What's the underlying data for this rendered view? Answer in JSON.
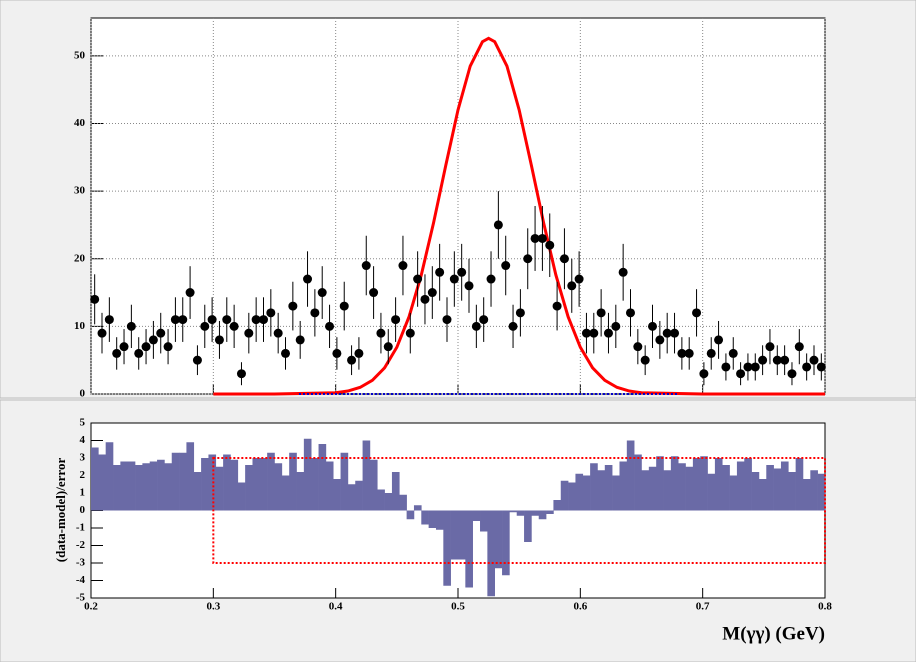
{
  "chart_data": [
    {
      "type": "errorbar",
      "x": [
        0.203,
        0.209,
        0.215,
        0.221,
        0.227,
        0.233,
        0.239,
        0.245,
        0.251,
        0.257,
        0.263,
        0.269,
        0.275,
        0.281,
        0.287,
        0.293,
        0.299,
        0.305,
        0.311,
        0.317,
        0.323,
        0.329,
        0.335,
        0.341,
        0.347,
        0.353,
        0.359,
        0.365,
        0.371,
        0.377,
        0.383,
        0.389,
        0.395,
        0.401,
        0.407,
        0.413,
        0.419,
        0.425,
        0.431,
        0.437,
        0.443,
        0.449,
        0.455,
        0.461,
        0.467,
        0.473,
        0.479,
        0.485,
        0.491,
        0.497,
        0.503,
        0.509,
        0.515,
        0.521,
        0.527,
        0.533,
        0.539,
        0.545,
        0.551,
        0.557,
        0.563,
        0.569,
        0.575,
        0.581,
        0.587,
        0.593,
        0.599,
        0.605,
        0.611,
        0.617,
        0.623,
        0.629,
        0.635,
        0.641,
        0.647,
        0.653,
        0.659,
        0.665,
        0.671,
        0.677,
        0.683,
        0.689,
        0.695,
        0.701,
        0.707,
        0.713,
        0.719,
        0.725,
        0.731,
        0.737,
        0.743,
        0.749,
        0.755,
        0.761,
        0.767,
        0.773,
        0.779,
        0.785,
        0.791,
        0.797
      ],
      "values": [
        14,
        9,
        11,
        6,
        7,
        10,
        6,
        7,
        8,
        9,
        7,
        11,
        11,
        15,
        5,
        10,
        11,
        8,
        11,
        10,
        3,
        9,
        11,
        11,
        12,
        9,
        6,
        13,
        8,
        17,
        12,
        15,
        10,
        6,
        13,
        5,
        6,
        19,
        15,
        9,
        7,
        11,
        19,
        9,
        17,
        14,
        15,
        18,
        11,
        17,
        18,
        16,
        10,
        11,
        17,
        25,
        19,
        10,
        12,
        20,
        23,
        23,
        22,
        13,
        20,
        16,
        17,
        9,
        9,
        12,
        9,
        10,
        18,
        12,
        7,
        5,
        10,
        8,
        9,
        9,
        6,
        6,
        12,
        3,
        6,
        8,
        4,
        6,
        3,
        4,
        4,
        5,
        7,
        5,
        5,
        3,
        7,
        4,
        5,
        4
      ],
      "errors": [
        3.7,
        3,
        3.3,
        2.4,
        2.6,
        3.2,
        2.4,
        2.6,
        2.8,
        3,
        2.6,
        3.3,
        3.3,
        3.9,
        2.2,
        3.2,
        3.3,
        2.8,
        3.3,
        3.2,
        1.7,
        3,
        3.3,
        3.3,
        3.5,
        3,
        2.4,
        3.6,
        2.8,
        4.1,
        3.5,
        3.9,
        3.2,
        2.4,
        3.6,
        2.2,
        2.4,
        4.4,
        3.9,
        3,
        2.6,
        3.3,
        4.4,
        3,
        4.1,
        3.7,
        3.9,
        4.2,
        3.3,
        4.1,
        4.2,
        4,
        3.2,
        3.3,
        4.1,
        5,
        4.4,
        3.2,
        3.5,
        4.5,
        4.8,
        4.8,
        4.7,
        3.6,
        4.5,
        4,
        4.1,
        3,
        3,
        3.5,
        3,
        3.2,
        4.2,
        3.5,
        2.6,
        2.2,
        3.2,
        2.8,
        3,
        3,
        2.4,
        2.4,
        3.5,
        1.7,
        2.4,
        2.8,
        2,
        2.4,
        1.7,
        2,
        2,
        2.2,
        2.6,
        2.2,
        2.2,
        1.7,
        2.6,
        2,
        2.2,
        2
      ],
      "color": "#000000",
      "curves": [
        {
          "color": "#ff0000",
          "x": [
            0.3,
            0.35,
            0.4,
            0.41,
            0.42,
            0.43,
            0.44,
            0.45,
            0.46,
            0.47,
            0.48,
            0.49,
            0.5,
            0.51,
            0.52,
            0.525,
            0.53,
            0.54,
            0.55,
            0.56,
            0.57,
            0.58,
            0.59,
            0.6,
            0.61,
            0.62,
            0.63,
            0.64,
            0.65,
            0.7,
            0.8
          ],
          "values": [
            0,
            0,
            0.18,
            0.44,
            0.98,
            2.02,
            3.87,
            6.91,
            11.43,
            17.6,
            25.3,
            33.8,
            42.0,
            48.5,
            52.1,
            52.6,
            52.1,
            48.5,
            42.0,
            33.8,
            25.3,
            17.6,
            11.43,
            6.91,
            3.87,
            2.02,
            0.98,
            0.44,
            0.18,
            0,
            0
          ]
        },
        {
          "color": "#0000cc",
          "x": [
            0.37,
            0.68
          ],
          "values": [
            0,
            0
          ]
        }
      ],
      "xlim": [
        0.2,
        0.8
      ],
      "ylim": [
        0,
        55.6
      ],
      "xticks": [
        0.2,
        0.3,
        0.4,
        0.5,
        0.6,
        0.7,
        0.8
      ],
      "yticks": [
        0,
        10,
        20,
        30,
        40,
        50
      ],
      "grid": true
    },
    {
      "type": "histogram",
      "bins": [
        0.2,
        0.206,
        0.212,
        0.218,
        0.224,
        0.23,
        0.236,
        0.242,
        0.248,
        0.254,
        0.26,
        0.266,
        0.272,
        0.278,
        0.284,
        0.29,
        0.296,
        0.302,
        0.308,
        0.314,
        0.32,
        0.326,
        0.332,
        0.338,
        0.344,
        0.35,
        0.356,
        0.362,
        0.368,
        0.374,
        0.38,
        0.386,
        0.392,
        0.398,
        0.404,
        0.41,
        0.416,
        0.422,
        0.428,
        0.434,
        0.44,
        0.446,
        0.452,
        0.458,
        0.464,
        0.47,
        0.476,
        0.482,
        0.488,
        0.494,
        0.5,
        0.506,
        0.512,
        0.518,
        0.524,
        0.53,
        0.536,
        0.542,
        0.548,
        0.554,
        0.56,
        0.566,
        0.572,
        0.578,
        0.584,
        0.59,
        0.596,
        0.602,
        0.608,
        0.614,
        0.62,
        0.626,
        0.632,
        0.638,
        0.644,
        0.65,
        0.656,
        0.662,
        0.668,
        0.674,
        0.68,
        0.686,
        0.692,
        0.698,
        0.704,
        0.71,
        0.716,
        0.722,
        0.728,
        0.734,
        0.74,
        0.746,
        0.752,
        0.758,
        0.764,
        0.77,
        0.776,
        0.782,
        0.788,
        0.794,
        0.8
      ],
      "values": [
        3.6,
        3.2,
        3.9,
        2.6,
        2.8,
        2.8,
        2.6,
        2.7,
        2.8,
        2.9,
        2.7,
        3.3,
        3.3,
        3.9,
        2.2,
        3.0,
        3.2,
        2.5,
        3.2,
        2.9,
        1.6,
        2.6,
        3.0,
        3.0,
        3.3,
        2.7,
        2.0,
        3.3,
        2.2,
        4.1,
        3.0,
        3.8,
        2.8,
        1.8,
        3.3,
        1.5,
        1.7,
        4.0,
        2.9,
        1.2,
        1.0,
        2.2,
        0.9,
        -0.5,
        0.3,
        -0.8,
        -1.0,
        -1.1,
        -4.3,
        -2.8,
        -2.8,
        -4.4,
        -0.6,
        -1.2,
        -4.9,
        -3.3,
        -3.7,
        -0.1,
        -0.3,
        -1.8,
        -0.3,
        -0.5,
        -0.2,
        0.6,
        1.7,
        1.6,
        2.1,
        2.0,
        2.7,
        2.3,
        2.6,
        2.0,
        2.8,
        4.0,
        3.2,
        2.3,
        2.5,
        3.1,
        2.3,
        3.1,
        2.7,
        2.5,
        3.0,
        3.1,
        2.1,
        3.0,
        2.6,
        2.0,
        2.8,
        3.0,
        2.2,
        1.8,
        2.6,
        2.4,
        2.8,
        2.2,
        3.0,
        1.8,
        2.3,
        2.1
      ],
      "color": "#6a6aa6",
      "xlabel": "M(γγ) (GeV)",
      "ylabel": "(data-model)/error",
      "xlim": [
        0.2,
        0.8
      ],
      "ylim": [
        -5,
        5
      ],
      "xticks": [
        0.2,
        0.3,
        0.4,
        0.5,
        0.6,
        0.7,
        0.8
      ],
      "yticks": [
        -5,
        -4,
        -3,
        -2,
        -1,
        0,
        1,
        2,
        3,
        4,
        5
      ],
      "grid": false,
      "band": {
        "x": [
          0.3,
          0.8
        ],
        "y": [
          -3,
          3
        ],
        "color": "#ff0000"
      }
    }
  ]
}
